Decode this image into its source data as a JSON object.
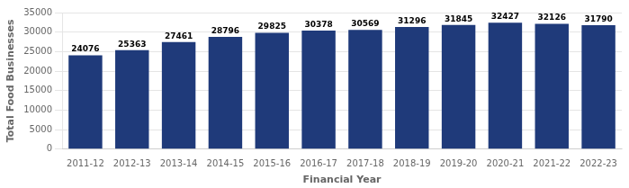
{
  "chart_data": {
    "type": "bar",
    "categories": [
      "2011-12",
      "2012-13",
      "2013-14",
      "2014-15",
      "2015-16",
      "2016-17",
      "2017-18",
      "2018-19",
      "2019-20",
      "2020-21",
      "2021-22",
      "2022-23"
    ],
    "values": [
      24076,
      25363,
      27461,
      28796,
      29825,
      30378,
      30569,
      31296,
      31845,
      32427,
      32126,
      31790
    ],
    "color": "#1F3A7A",
    "xlabel": "Financial Year",
    "ylabel": "Total Food Businesses",
    "ylim": [
      0,
      35000
    ],
    "yticks": [
      0,
      5000,
      10000,
      15000,
      20000,
      25000,
      30000,
      35000
    ],
    "grid": true,
    "data_labels": true
  }
}
